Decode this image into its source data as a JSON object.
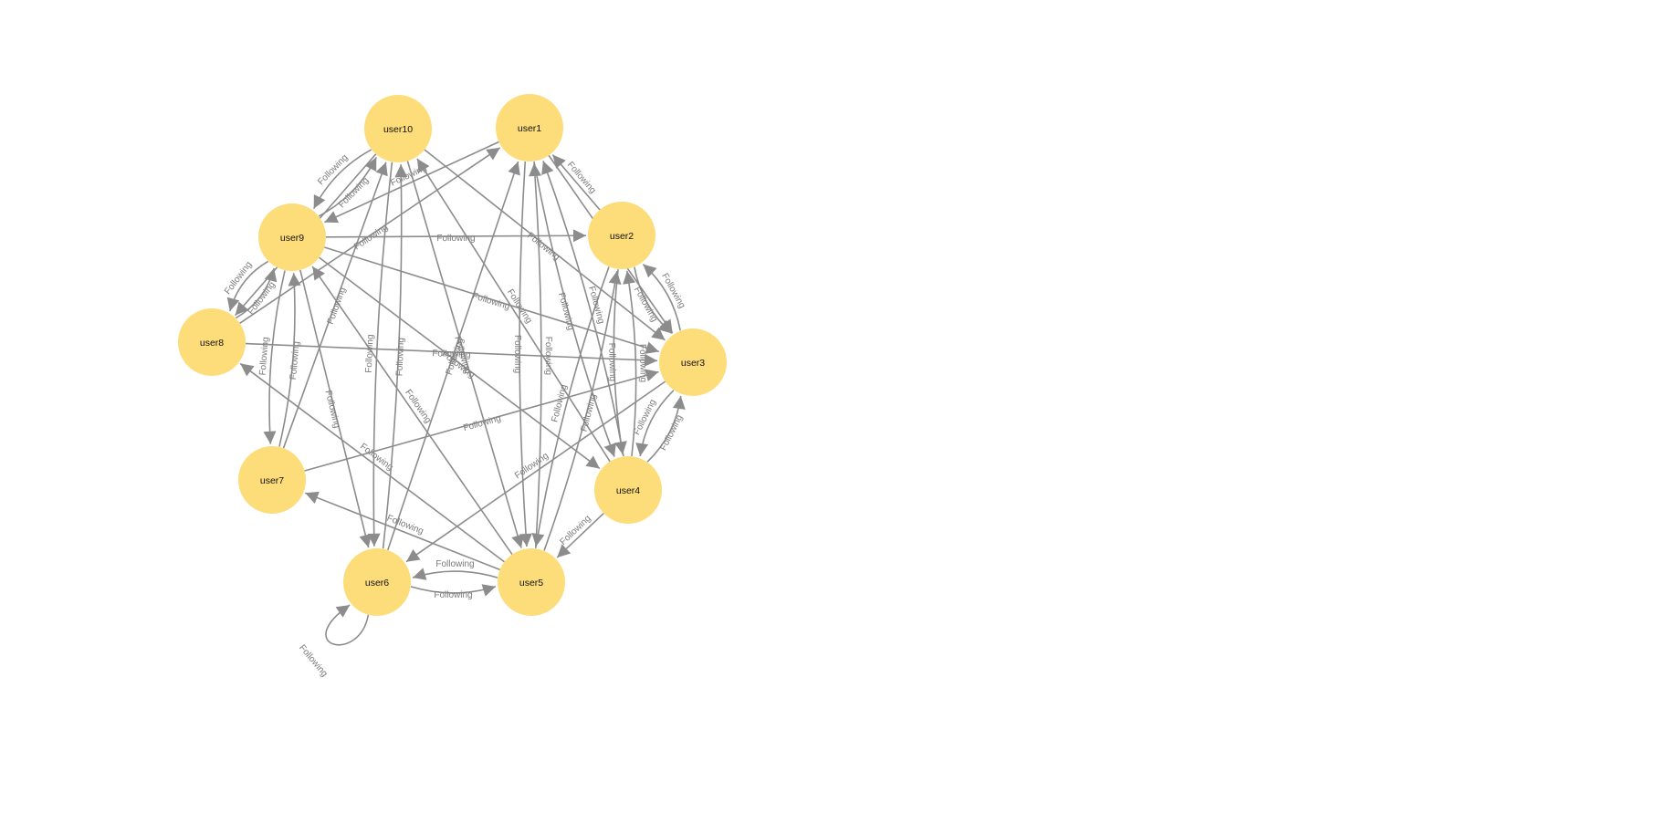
{
  "graph": {
    "node_color": "#fddc7a",
    "edge_color": "#8c8c8c",
    "nodes": [
      {
        "id": "user1"
      },
      {
        "id": "user2"
      },
      {
        "id": "user3"
      },
      {
        "id": "user4"
      },
      {
        "id": "user5"
      },
      {
        "id": "user6"
      },
      {
        "id": "user7"
      },
      {
        "id": "user8"
      },
      {
        "id": "user9"
      },
      {
        "id": "user10"
      }
    ],
    "edges": [
      {
        "source": "user1",
        "target": "user3",
        "label": "Following"
      },
      {
        "source": "user1",
        "target": "user4",
        "label": "Following"
      },
      {
        "source": "user1",
        "target": "user5",
        "label": "Following"
      },
      {
        "source": "user1",
        "target": "user9",
        "label": "Following"
      },
      {
        "source": "user2",
        "target": "user1",
        "label": "Following"
      },
      {
        "source": "user2",
        "target": "user3",
        "label": "Following"
      },
      {
        "source": "user2",
        "target": "user4",
        "label": "Following"
      },
      {
        "source": "user2",
        "target": "user5",
        "label": "Following"
      },
      {
        "source": "user3",
        "target": "user2",
        "label": "Following"
      },
      {
        "source": "user3",
        "target": "user4",
        "label": "Following"
      },
      {
        "source": "user3",
        "target": "user6",
        "label": "Following"
      },
      {
        "source": "user4",
        "target": "user1",
        "label": "Following"
      },
      {
        "source": "user4",
        "target": "user2",
        "label": "Following"
      },
      {
        "source": "user4",
        "target": "user3",
        "label": "Following"
      },
      {
        "source": "user4",
        "target": "user5",
        "label": "Following"
      },
      {
        "source": "user4",
        "target": "user10",
        "label": "Following"
      },
      {
        "source": "user5",
        "target": "user1",
        "label": "Following"
      },
      {
        "source": "user5",
        "target": "user2",
        "label": "Following"
      },
      {
        "source": "user5",
        "target": "user6",
        "label": "Following"
      },
      {
        "source": "user5",
        "target": "user7",
        "label": "Following"
      },
      {
        "source": "user5",
        "target": "user8",
        "label": "Following"
      },
      {
        "source": "user5",
        "target": "user9",
        "label": "Following"
      },
      {
        "source": "user6",
        "target": "user1",
        "label": "Following"
      },
      {
        "source": "user6",
        "target": "user5",
        "label": "Following"
      },
      {
        "source": "user6",
        "target": "user6",
        "label": "Following"
      },
      {
        "source": "user6",
        "target": "user10",
        "label": "Following"
      },
      {
        "source": "user7",
        "target": "user3",
        "label": "Following"
      },
      {
        "source": "user7",
        "target": "user9",
        "label": "Following"
      },
      {
        "source": "user7",
        "target": "user10",
        "label": "Following"
      },
      {
        "source": "user8",
        "target": "user1",
        "label": "Following"
      },
      {
        "source": "user8",
        "target": "user3",
        "label": "Following"
      },
      {
        "source": "user8",
        "target": "user9",
        "label": "Following"
      },
      {
        "source": "user9",
        "target": "user2",
        "label": "Following"
      },
      {
        "source": "user9",
        "target": "user3",
        "label": "Following"
      },
      {
        "source": "user9",
        "target": "user4",
        "label": "Following"
      },
      {
        "source": "user9",
        "target": "user6",
        "label": "Following"
      },
      {
        "source": "user9",
        "target": "user7",
        "label": "Following"
      },
      {
        "source": "user9",
        "target": "user8",
        "label": "Following"
      },
      {
        "source": "user9",
        "target": "user10",
        "label": "Following"
      },
      {
        "source": "user10",
        "target": "user3",
        "label": "Following"
      },
      {
        "source": "user10",
        "target": "user5",
        "label": "Following"
      },
      {
        "source": "user10",
        "target": "user6",
        "label": "Following"
      },
      {
        "source": "user10",
        "target": "user8",
        "label": "Following"
      },
      {
        "source": "user10",
        "target": "user9",
        "label": "Following"
      }
    ]
  }
}
